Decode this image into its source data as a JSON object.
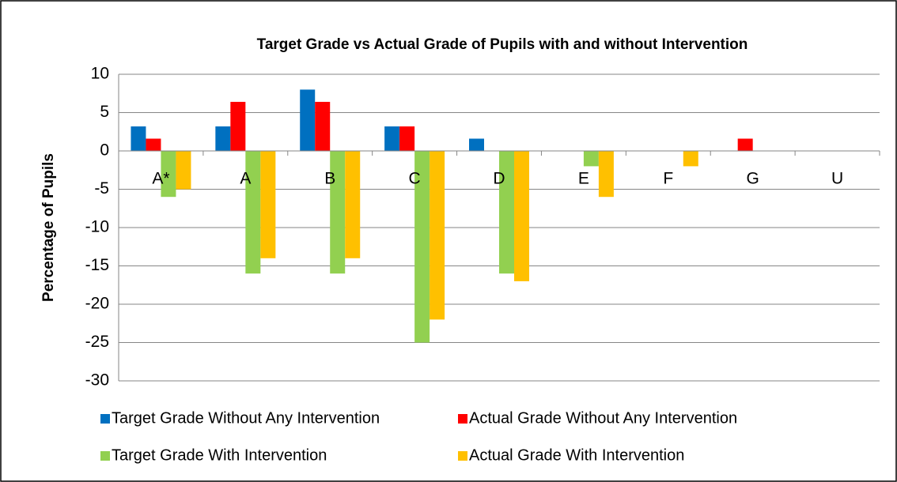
{
  "chart_data": {
    "type": "bar",
    "title": "Target Grade vs Actual Grade of Pupils with and without Intervention",
    "y_label": "Percentage of Pupils",
    "categories": [
      "A*",
      "A",
      "B",
      "C",
      "D",
      "E",
      "F",
      "G",
      "U"
    ],
    "series": [
      {
        "name": "Target Grade Without Any Intervention",
        "color": "#0070c0",
        "values": [
          3.2,
          3.2,
          8,
          3.2,
          1.6,
          0,
          0,
          0,
          0
        ]
      },
      {
        "name": "Actual Grade Without Any Intervention",
        "color": "#ff0000",
        "values": [
          1.6,
          6.4,
          6.4,
          3.2,
          0,
          0,
          0,
          1.6,
          0
        ]
      },
      {
        "name": "Target Grade With Intervention",
        "color": "#92d050",
        "values": [
          -6,
          -16,
          -16,
          -25,
          -16,
          -2,
          0,
          0,
          0
        ]
      },
      {
        "name": "Actual Grade With Intervention",
        "color": "#ffc000",
        "values": [
          -5,
          -14,
          -14,
          -22,
          -17,
          -6,
          -2,
          0,
          0
        ]
      }
    ],
    "ylim": [
      -30,
      10
    ],
    "yticks": [
      10,
      5,
      0,
      -5,
      -10,
      -15,
      -20,
      -25,
      -30
    ],
    "grid": true,
    "legend": "bottom"
  }
}
